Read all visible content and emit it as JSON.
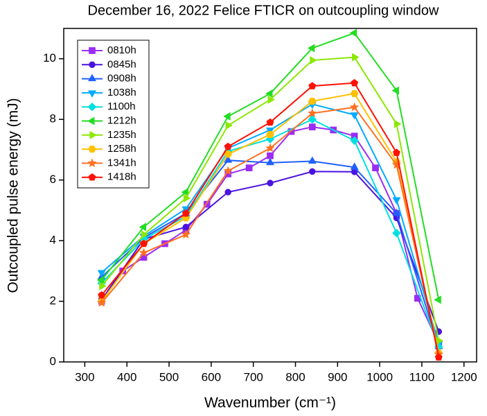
{
  "chart_data": {
    "type": "line",
    "title": "December 16, 2022 Felice FTICR on outcoupling window",
    "xlabel": "Wavenumber (cm⁻¹)",
    "ylabel": "Outcoupled pulse energy (mJ)",
    "xlim": [
      250,
      1230
    ],
    "ylim": [
      0,
      11
    ],
    "xticks": [
      300,
      400,
      500,
      600,
      700,
      800,
      900,
      1000,
      1100,
      1200
    ],
    "yticks": [
      0,
      2,
      4,
      6,
      8,
      10
    ],
    "legend": "upper left",
    "series": [
      {
        "name": "0810h",
        "color": "#9b2cf5",
        "marker": "square",
        "x": [
          340,
          390,
          440,
          490,
          540,
          590,
          640,
          690,
          740,
          790,
          840,
          890,
          940,
          990,
          1040,
          1090,
          1140
        ],
        "values": [
          2.0,
          3.0,
          3.45,
          3.9,
          4.35,
          5.2,
          6.2,
          6.4,
          6.8,
          7.6,
          7.75,
          7.65,
          7.45,
          6.4,
          4.9,
          2.1,
          0.6
        ]
      },
      {
        "name": "0845h",
        "color": "#4a12e0",
        "marker": "circle",
        "x": [
          340,
          440,
          540,
          640,
          740,
          840,
          940,
          1040,
          1140
        ],
        "values": [
          2.05,
          4.05,
          4.45,
          5.6,
          5.9,
          6.28,
          6.27,
          4.75,
          1.0
        ]
      },
      {
        "name": "0908h",
        "color": "#2060ff",
        "marker": "triangle-up",
        "x": [
          340,
          440,
          540,
          640,
          740,
          840,
          940,
          1040,
          1140
        ],
        "values": [
          2.8,
          4.1,
          4.9,
          6.65,
          6.57,
          6.62,
          6.42,
          4.9,
          0.5
        ]
      },
      {
        "name": "1038h",
        "color": "#00aaff",
        "marker": "triangle-down",
        "x": [
          340,
          440,
          540,
          640,
          740,
          840,
          940,
          1040,
          1140
        ],
        "values": [
          2.95,
          4.15,
          5.05,
          7.05,
          7.65,
          8.5,
          8.15,
          5.35,
          0.6
        ]
      },
      {
        "name": "1100h",
        "color": "#00e0e0",
        "marker": "diamond",
        "x": [
          340,
          440,
          540,
          640,
          740,
          840,
          940,
          1040,
          1140
        ],
        "values": [
          2.6,
          4.05,
          4.8,
          6.95,
          7.35,
          8.0,
          7.3,
          4.25,
          0.5
        ]
      },
      {
        "name": "1212h",
        "color": "#22dd22",
        "marker": "triangle-left",
        "x": [
          340,
          440,
          540,
          640,
          740,
          840,
          940,
          1040,
          1140
        ],
        "values": [
          2.7,
          4.45,
          5.6,
          8.1,
          8.85,
          10.35,
          10.85,
          8.95,
          2.05
        ]
      },
      {
        "name": "1235h",
        "color": "#8be800",
        "marker": "triangle-right",
        "x": [
          340,
          440,
          540,
          640,
          740,
          840,
          940,
          1040,
          1140
        ],
        "values": [
          2.5,
          4.2,
          5.4,
          7.8,
          8.65,
          9.95,
          10.05,
          7.85,
          0.7
        ]
      },
      {
        "name": "1258h",
        "color": "#ffc000",
        "marker": "hexagon",
        "x": [
          340,
          440,
          540,
          640,
          740,
          840,
          940,
          1040,
          1140
        ],
        "values": [
          2.0,
          3.9,
          4.75,
          6.85,
          7.5,
          8.6,
          8.85,
          6.6,
          0.3
        ]
      },
      {
        "name": "1341h",
        "color": "#ff7020",
        "marker": "star",
        "x": [
          340,
          440,
          540,
          640,
          740,
          840,
          940,
          1040,
          1140
        ],
        "values": [
          1.95,
          3.6,
          4.2,
          6.3,
          7.05,
          8.2,
          8.4,
          6.5,
          0.25
        ]
      },
      {
        "name": "1418h",
        "color": "#ff1000",
        "marker": "pentagon",
        "x": [
          340,
          440,
          540,
          640,
          740,
          840,
          940,
          1040,
          1140
        ],
        "values": [
          2.2,
          3.9,
          4.9,
          7.1,
          7.9,
          9.1,
          9.2,
          6.9,
          0.15
        ]
      }
    ]
  }
}
